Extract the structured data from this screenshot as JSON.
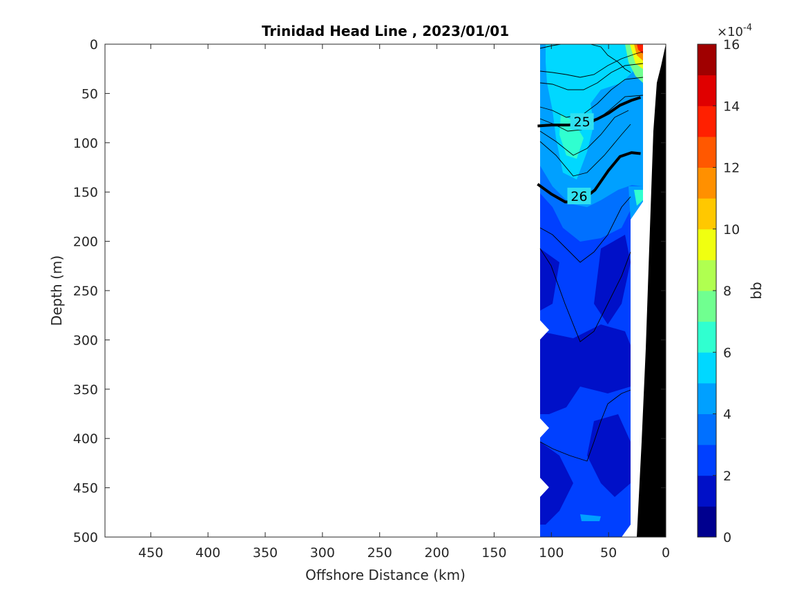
{
  "chart_data": {
    "type": "heatmap",
    "subtype": "filled-contour section",
    "title": "Trinidad Head Line , 2023/01/01",
    "xlabel": "Offshore Distance (km)",
    "ylabel": "Depth (m)",
    "xlim": [
      490,
      0
    ],
    "x_reversed": true,
    "ylim": [
      0,
      500
    ],
    "y_reversed": true,
    "x_ticks": [
      "450",
      "400",
      "350",
      "300",
      "250",
      "200",
      "150",
      "100",
      "50",
      "0"
    ],
    "y_ticks": [
      "0",
      "50",
      "100",
      "150",
      "200",
      "250",
      "300",
      "350",
      "400",
      "450",
      "500"
    ],
    "colorbar": {
      "label": "bb",
      "exponent_label": "×10",
      "exponent_power": "-4",
      "range": [
        0,
        16
      ],
      "ticks": [
        "0",
        "2",
        "4",
        "6",
        "8",
        "10",
        "12",
        "14",
        "16"
      ],
      "colors": [
        "#00008f",
        "#0010c8",
        "#0040ff",
        "#0070ff",
        "#00a0ff",
        "#00d8ff",
        "#30ffd0",
        "#70ff90",
        "#b0ff50",
        "#f0ff10",
        "#ffc800",
        "#ff9000",
        "#ff5800",
        "#ff2000",
        "#e00000",
        "#a00000"
      ]
    },
    "section_extent_km": [
      110,
      20
    ],
    "bathymetry_color": "#000000",
    "density_contours": [
      {
        "label": "25",
        "points": [
          [
            112,
            83
          ],
          [
            100,
            82
          ],
          [
            85,
            82
          ],
          [
            72,
            81
          ],
          [
            60,
            76
          ],
          [
            50,
            70
          ],
          [
            40,
            62
          ],
          [
            30,
            57
          ],
          [
            22,
            54
          ]
        ]
      },
      {
        "label": "26",
        "points": [
          [
            112,
            142
          ],
          [
            100,
            152
          ],
          [
            88,
            160
          ],
          [
            75,
            160
          ],
          [
            62,
            148
          ],
          [
            50,
            128
          ],
          [
            40,
            114
          ],
          [
            30,
            110
          ],
          [
            22,
            111
          ]
        ]
      }
    ],
    "contour_labels": [
      "25",
      "26"
    ],
    "grid": false
  }
}
